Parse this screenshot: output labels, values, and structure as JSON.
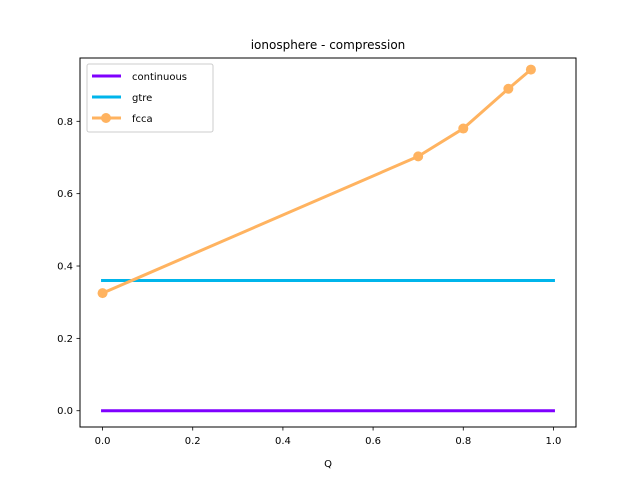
{
  "chart_data": {
    "type": "line",
    "title": "ionosphere - compression",
    "xlabel": "Q",
    "ylabel": "",
    "xlim": [
      -0.05,
      1.05
    ],
    "ylim": [
      -0.045,
      0.975
    ],
    "xticks": [
      0.0,
      0.2,
      0.4,
      0.6,
      0.8,
      1.0
    ],
    "xtick_labels": [
      "0.0",
      "0.2",
      "0.4",
      "0.6",
      "0.8",
      "1.0"
    ],
    "yticks": [
      0.0,
      0.2,
      0.4,
      0.6,
      0.8
    ],
    "ytick_labels": [
      "0.0",
      "0.2",
      "0.4",
      "0.6",
      "0.8"
    ],
    "grid": false,
    "legend_position": "top-left",
    "series": [
      {
        "name": "continuous",
        "color": "#7f00ff",
        "marker": false,
        "x": [
          0.0,
          1.0
        ],
        "y": [
          0.0,
          0.0
        ]
      },
      {
        "name": "gtre",
        "color": "#00b5eb",
        "marker": false,
        "x": [
          0.0,
          1.0
        ],
        "y": [
          0.36,
          0.36
        ]
      },
      {
        "name": "fcca",
        "color": "#ffb360",
        "marker": true,
        "x": [
          0.0,
          0.7,
          0.8,
          0.9,
          0.95
        ],
        "y": [
          0.325,
          0.703,
          0.78,
          0.89,
          0.943
        ]
      }
    ]
  }
}
